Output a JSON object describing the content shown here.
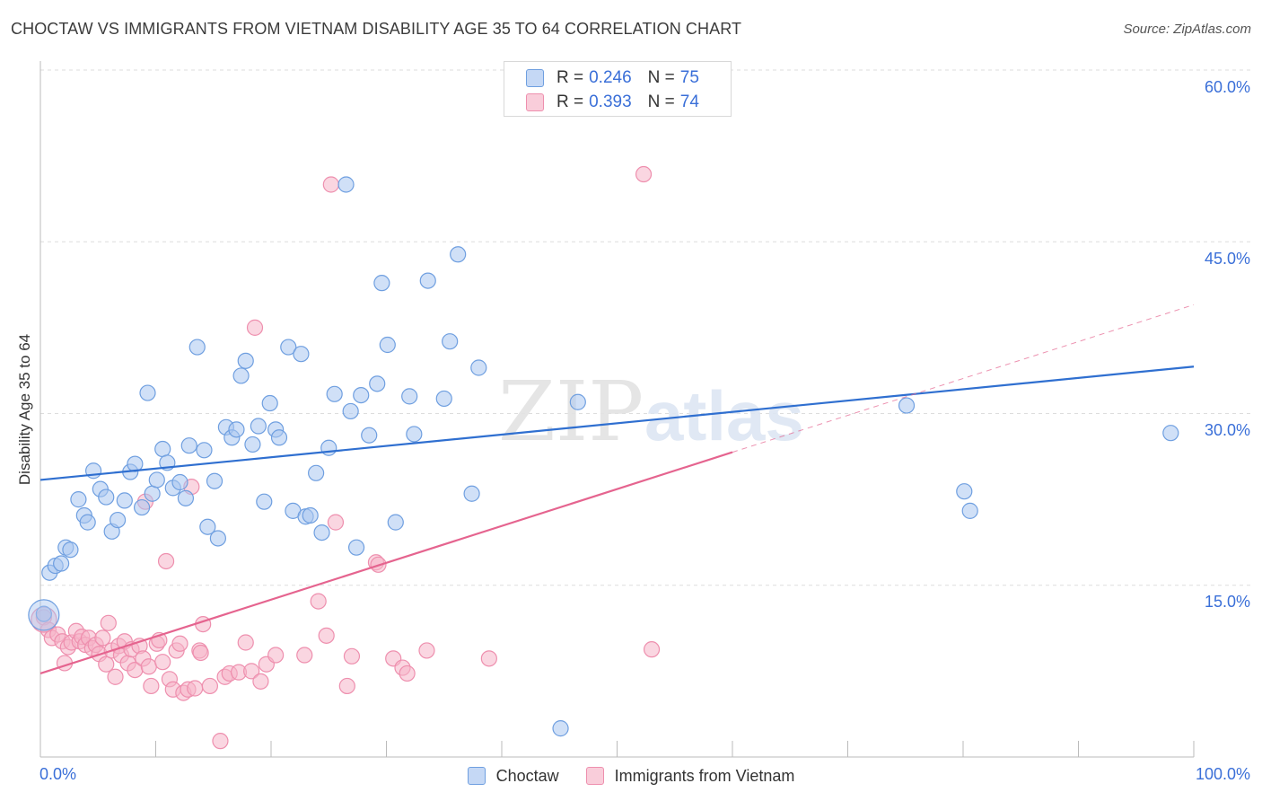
{
  "header": {
    "title": "CHOCTAW VS IMMIGRANTS FROM VIETNAM DISABILITY AGE 35 TO 64 CORRELATION CHART",
    "source": "Source: ZipAtlas.com"
  },
  "watermark": {
    "part1": "ZIP",
    "part2": "atlas"
  },
  "legend": {
    "series1": {
      "r_label": "R =",
      "r_value": "0.246",
      "n_label": "N =",
      "n_value": "75"
    },
    "series2": {
      "r_label": "R =",
      "r_value": "0.393",
      "n_label": "N =",
      "n_value": "74"
    }
  },
  "colors": {
    "choctaw_fill": "#a9c6f0",
    "choctaw_stroke": "#6f9fe0",
    "choctaw_line": "#2f6fd0",
    "vietnam_fill": "#f6b5c8",
    "vietnam_stroke": "#ee8fae",
    "vietnam_line": "#e5648f",
    "tick_label": "#3a6fd8",
    "grid": "#dddddd"
  },
  "chart_data": {
    "type": "scatter",
    "title": "CHOCTAW VS IMMIGRANTS FROM VIETNAM DISABILITY AGE 35 TO 64 CORRELATION CHART",
    "xlabel": "",
    "ylabel": "Disability Age 35 to 64",
    "xlim": [
      0,
      100
    ],
    "ylim": [
      0,
      60
    ],
    "x_tick_labels": [
      "0.0%",
      "100.0%"
    ],
    "y_ticks": [
      15,
      30,
      45,
      60
    ],
    "y_tick_labels": [
      "15.0%",
      "30.0%",
      "45.0%",
      "60.0%"
    ],
    "grid": true,
    "legend_position": "bottom",
    "series": [
      {
        "name": "Choctaw",
        "r": 0.246,
        "n": 75,
        "trend": {
          "x0": 0,
          "y0": 24.2,
          "x1": 100,
          "y1": 34.1,
          "dashed_from": null
        },
        "points": [
          [
            0.3,
            12.5
          ],
          [
            0.8,
            16.1
          ],
          [
            1.3,
            16.7
          ],
          [
            1.8,
            16.9
          ],
          [
            2.2,
            18.3
          ],
          [
            2.6,
            18.1
          ],
          [
            3.3,
            22.5
          ],
          [
            3.8,
            21.1
          ],
          [
            4.1,
            20.5
          ],
          [
            4.6,
            25.0
          ],
          [
            5.2,
            23.4
          ],
          [
            5.7,
            22.7
          ],
          [
            6.2,
            19.7
          ],
          [
            6.7,
            20.7
          ],
          [
            7.3,
            22.4
          ],
          [
            7.8,
            24.9
          ],
          [
            8.2,
            25.6
          ],
          [
            8.8,
            21.8
          ],
          [
            9.3,
            31.8
          ],
          [
            9.7,
            23.0
          ],
          [
            10.1,
            24.2
          ],
          [
            10.6,
            26.9
          ],
          [
            11.0,
            25.7
          ],
          [
            11.5,
            23.5
          ],
          [
            12.1,
            24.0
          ],
          [
            12.6,
            22.6
          ],
          [
            12.9,
            27.2
          ],
          [
            13.6,
            35.8
          ],
          [
            14.2,
            26.8
          ],
          [
            14.5,
            20.1
          ],
          [
            15.1,
            24.1
          ],
          [
            15.4,
            19.1
          ],
          [
            16.1,
            28.8
          ],
          [
            16.6,
            27.9
          ],
          [
            17.0,
            28.6
          ],
          [
            17.4,
            33.3
          ],
          [
            17.8,
            34.6
          ],
          [
            18.4,
            27.3
          ],
          [
            18.9,
            28.9
          ],
          [
            19.4,
            22.3
          ],
          [
            19.9,
            30.9
          ],
          [
            20.4,
            28.6
          ],
          [
            20.7,
            27.9
          ],
          [
            21.5,
            35.8
          ],
          [
            21.9,
            21.5
          ],
          [
            22.6,
            35.2
          ],
          [
            23.0,
            21.0
          ],
          [
            23.4,
            21.1
          ],
          [
            23.9,
            24.8
          ],
          [
            24.4,
            19.6
          ],
          [
            25.0,
            27.0
          ],
          [
            25.5,
            31.7
          ],
          [
            26.5,
            50.0
          ],
          [
            26.9,
            30.2
          ],
          [
            27.4,
            18.3
          ],
          [
            27.8,
            31.6
          ],
          [
            28.5,
            28.1
          ],
          [
            29.2,
            32.6
          ],
          [
            29.6,
            41.4
          ],
          [
            30.1,
            36.0
          ],
          [
            30.8,
            20.5
          ],
          [
            32.0,
            31.5
          ],
          [
            32.4,
            28.2
          ],
          [
            33.6,
            41.6
          ],
          [
            35.0,
            31.3
          ],
          [
            35.5,
            36.3
          ],
          [
            36.2,
            43.9
          ],
          [
            37.4,
            23.0
          ],
          [
            38.0,
            34.0
          ],
          [
            45.1,
            2.5
          ],
          [
            46.6,
            31.0
          ],
          [
            75.1,
            30.7
          ],
          [
            80.1,
            23.2
          ],
          [
            80.6,
            21.5
          ],
          [
            98.0,
            28.3
          ]
        ]
      },
      {
        "name": "Immigrants from Vietnam",
        "r": 0.393,
        "n": 74,
        "trend": {
          "x0": 0,
          "y0": 7.3,
          "x1": 100,
          "y1": 39.5,
          "dashed_from": 60
        },
        "points": [
          [
            0.3,
            12.2
          ],
          [
            0.7,
            11.1
          ],
          [
            1.0,
            10.4
          ],
          [
            1.5,
            10.7
          ],
          [
            1.9,
            10.1
          ],
          [
            2.1,
            8.2
          ],
          [
            2.4,
            9.6
          ],
          [
            2.7,
            10.0
          ],
          [
            3.1,
            11.0
          ],
          [
            3.4,
            10.1
          ],
          [
            3.6,
            10.5
          ],
          [
            3.9,
            9.8
          ],
          [
            4.2,
            10.4
          ],
          [
            4.5,
            9.5
          ],
          [
            4.8,
            9.8
          ],
          [
            5.1,
            9.0
          ],
          [
            5.4,
            10.4
          ],
          [
            5.7,
            8.1
          ],
          [
            5.9,
            11.7
          ],
          [
            6.2,
            9.3
          ],
          [
            6.5,
            7.0
          ],
          [
            6.8,
            9.7
          ],
          [
            7.0,
            8.9
          ],
          [
            7.3,
            10.1
          ],
          [
            7.6,
            8.2
          ],
          [
            7.9,
            9.4
          ],
          [
            8.2,
            7.6
          ],
          [
            8.6,
            9.7
          ],
          [
            8.9,
            8.6
          ],
          [
            9.1,
            22.3
          ],
          [
            9.4,
            7.9
          ],
          [
            9.6,
            6.2
          ],
          [
            10.1,
            9.9
          ],
          [
            10.3,
            10.2
          ],
          [
            10.6,
            8.3
          ],
          [
            10.9,
            17.1
          ],
          [
            11.2,
            6.8
          ],
          [
            11.5,
            5.9
          ],
          [
            11.8,
            9.3
          ],
          [
            12.1,
            9.9
          ],
          [
            12.4,
            5.6
          ],
          [
            12.8,
            5.9
          ],
          [
            13.1,
            23.6
          ],
          [
            13.4,
            6.0
          ],
          [
            13.8,
            9.3
          ],
          [
            13.9,
            9.1
          ],
          [
            14.1,
            11.6
          ],
          [
            14.7,
            6.2
          ],
          [
            15.6,
            1.4
          ],
          [
            16.0,
            7.0
          ],
          [
            16.4,
            7.3
          ],
          [
            17.2,
            7.4
          ],
          [
            17.8,
            10.0
          ],
          [
            18.3,
            7.5
          ],
          [
            18.6,
            37.5
          ],
          [
            19.1,
            6.6
          ],
          [
            19.6,
            8.1
          ],
          [
            20.4,
            8.9
          ],
          [
            22.9,
            8.9
          ],
          [
            24.1,
            13.6
          ],
          [
            24.8,
            10.6
          ],
          [
            25.2,
            50.0
          ],
          [
            25.6,
            20.5
          ],
          [
            26.6,
            6.2
          ],
          [
            27.0,
            8.8
          ],
          [
            29.1,
            17.0
          ],
          [
            29.3,
            16.8
          ],
          [
            30.6,
            8.6
          ],
          [
            31.4,
            7.8
          ],
          [
            31.8,
            7.3
          ],
          [
            33.5,
            9.3
          ],
          [
            38.9,
            8.6
          ],
          [
            52.3,
            50.9
          ],
          [
            53.0,
            9.4
          ]
        ]
      }
    ]
  }
}
